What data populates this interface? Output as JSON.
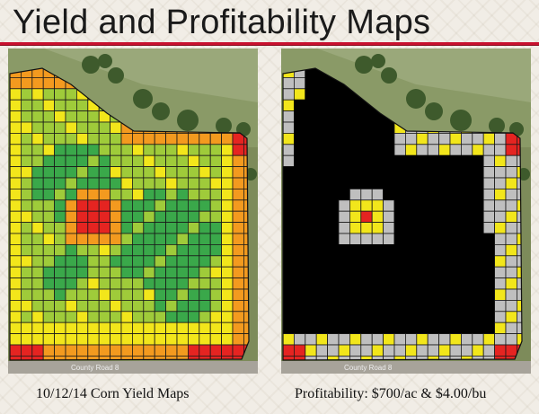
{
  "header": {
    "title": "Yield and Profitability Maps"
  },
  "maps": [
    {
      "caption": "10/12/14 Corn Yield Maps",
      "road_label": "County Road 8"
    },
    {
      "caption": "Profitability: $700/ac & $4.00/bu",
      "road_label": "County Road 8"
    }
  ],
  "colors": {
    "accent_rule": "#c8102e",
    "yield_high": "#3aa84a",
    "yield_mid_high": "#9fcb3a",
    "yield_mid": "#f2e61b",
    "yield_low_mid": "#f39a1f",
    "yield_low": "#e52421",
    "profit_positive": "#000000",
    "profit_neutral": "#bfbfbf",
    "profit_marginal": "#f2e61b",
    "profit_loss": "#e52421"
  }
}
